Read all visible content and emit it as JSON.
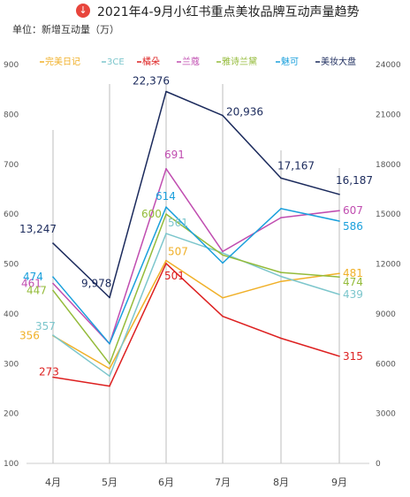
{
  "header": {
    "title": "2021年4-9月小红书重点美妆品牌互动声量趋势",
    "subtitle": "单位：新增互动量（万）"
  },
  "chart_data": {
    "type": "line",
    "title": "2021年4-9月小红书重点美妆品牌互动声量趋势",
    "subtitle": "单位：新增互动量（万）",
    "categories": [
      "4月",
      "5月",
      "6月",
      "7月",
      "8月",
      "9月"
    ],
    "y_left": {
      "ticks": [
        100,
        200,
        300,
        400,
        500,
        600,
        700,
        800,
        900
      ],
      "range": [
        100,
        900
      ]
    },
    "y_right": {
      "ticks": [
        0,
        3000,
        6000,
        9000,
        12000,
        15000,
        18000,
        21000,
        24000
      ],
      "range": [
        0,
        24000
      ]
    },
    "legend_placement": "top",
    "grid": "vertical",
    "series": [
      {
        "name": "完美日记",
        "color": "#f0b028",
        "axis": "left",
        "values": [
          356,
          290,
          507,
          432,
          465,
          481
        ],
        "labels": [
          "356",
          "",
          "507",
          "",
          "",
          "481"
        ]
      },
      {
        "name": "3CE",
        "color": "#7cc6cc",
        "axis": "left",
        "values": [
          357,
          275,
          561,
          522,
          475,
          439
        ],
        "labels": [
          "357",
          "",
          "561",
          "",
          "",
          "439"
        ]
      },
      {
        "name": "橘朵",
        "color": "#dd2020",
        "axis": "left",
        "values": [
          273,
          255,
          501,
          395,
          351,
          315
        ],
        "labels": [
          "273",
          "",
          "501",
          "",
          "",
          "315"
        ]
      },
      {
        "name": "兰蔻",
        "color": "#c04db0",
        "axis": "left",
        "values": [
          461,
          340,
          691,
          525,
          593,
          607
        ],
        "labels": [
          "461",
          "",
          "691",
          "",
          "",
          "607"
        ]
      },
      {
        "name": "雅诗兰黛",
        "color": "#94bb3a",
        "axis": "left",
        "values": [
          447,
          300,
          600,
          518,
          483,
          474
        ],
        "labels": [
          "447",
          "",
          "600",
          "",
          "",
          "474"
        ]
      },
      {
        "name": "魅可",
        "color": "#1aa0dc",
        "axis": "left",
        "values": [
          474,
          340,
          614,
          502,
          611,
          586
        ],
        "labels": [
          "474",
          "",
          "614",
          "",
          "",
          "586"
        ]
      },
      {
        "name": "美妆大盘",
        "color": "#1b2a5c",
        "axis": "right",
        "values": [
          13247,
          9978,
          22376,
          20936,
          17167,
          16187
        ],
        "labels": [
          "13,247",
          "9,978",
          "22,376",
          "20,936",
          "17,167",
          "16,187"
        ]
      }
    ]
  }
}
